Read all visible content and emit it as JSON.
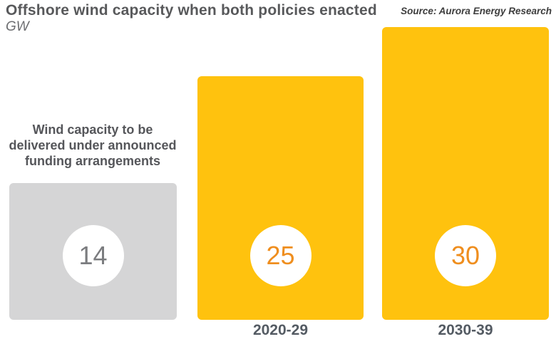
{
  "header": {
    "title": "Offshore wind capacity when both policies enacted",
    "unit": "GW",
    "source": "Source: Aurora Energy Research"
  },
  "annotation": "Wind capacity to be delivered under announced funding arrangements",
  "chart_data": {
    "type": "bar",
    "title": "Offshore wind capacity when both policies enacted",
    "ylabel": "GW",
    "source": "Aurora Energy Research",
    "categories": [
      "Wind capacity to be delivered under announced funding arrangements",
      "2020-29",
      "2030-39"
    ],
    "values": [
      14,
      25,
      30
    ],
    "x_tick_labels": [
      "",
      "2020-29",
      "2030-39"
    ],
    "ylim": [
      0,
      30
    ],
    "grid": false,
    "legend": false,
    "bar_colors": [
      "#D5D5D6",
      "#FFC20E",
      "#FFC20E"
    ],
    "value_label_colors": [
      "#7B7C7F",
      "#EF8E1E",
      "#EF8E1E"
    ],
    "bar_ids": [
      "announced-funding",
      "2020-29",
      "2030-39"
    ]
  },
  "colors": {
    "background": "#FFFFFF",
    "accent_yellow": "#FFC20E",
    "neutral_gray": "#D5D5D6",
    "text_dark": "#58595B",
    "value_orange": "#EF8E1E"
  }
}
